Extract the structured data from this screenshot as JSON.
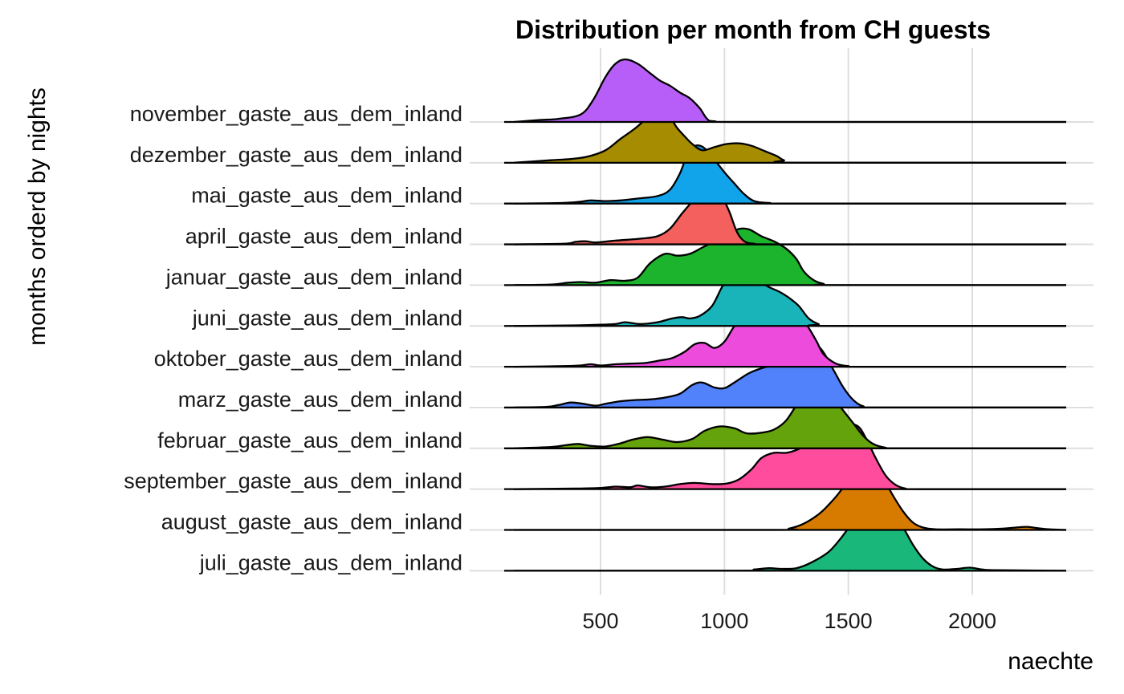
{
  "chart_data": {
    "type": "ridgeline",
    "title": "Distribution per month from CH guests",
    "xlabel": "naechte",
    "ylabel": "months orderd by nights",
    "xlim": [
      150,
      2380
    ],
    "x_ticks": [
      500,
      1000,
      1500,
      2000
    ],
    "x_tick_labels": [
      "500",
      "1000",
      "1500",
      "2000"
    ],
    "grid": true,
    "series": [
      {
        "name": "november_gaste_aus_dem_inland",
        "color": "#B75EF8",
        "density": [
          [
            150,
            0
          ],
          [
            250,
            0.03
          ],
          [
            330,
            0.05
          ],
          [
            420,
            0.12
          ],
          [
            470,
            0.35
          ],
          [
            520,
            0.72
          ],
          [
            560,
            0.93
          ],
          [
            600,
            1.0
          ],
          [
            650,
            0.93
          ],
          [
            700,
            0.78
          ],
          [
            740,
            0.66
          ],
          [
            780,
            0.58
          ],
          [
            820,
            0.47
          ],
          [
            860,
            0.38
          ],
          [
            900,
            0.22
          ],
          [
            930,
            0.05
          ],
          [
            960,
            0.01
          ],
          [
            1100,
            0
          ],
          [
            2380,
            0
          ]
        ]
      },
      {
        "name": "dezember_gaste_aus_dem_inland",
        "color": "#A58C00",
        "density": [
          [
            150,
            0
          ],
          [
            300,
            0.04
          ],
          [
            380,
            0.06
          ],
          [
            450,
            0.1
          ],
          [
            520,
            0.2
          ],
          [
            580,
            0.38
          ],
          [
            640,
            0.55
          ],
          [
            700,
            0.75
          ],
          [
            740,
            0.8
          ],
          [
            780,
            0.72
          ],
          [
            810,
            0.55
          ],
          [
            840,
            0.42
          ],
          [
            870,
            0.3
          ],
          [
            910,
            0.2
          ],
          [
            960,
            0.25
          ],
          [
            1010,
            0.3
          ],
          [
            1060,
            0.31
          ],
          [
            1110,
            0.27
          ],
          [
            1160,
            0.19
          ],
          [
            1210,
            0.11
          ],
          [
            1240,
            0.04
          ],
          [
            1300,
            0
          ],
          [
            2380,
            0
          ]
        ]
      },
      {
        "name": "mai_gaste_aus_dem_inland",
        "color": "#12A4EB",
        "density": [
          [
            150,
            0
          ],
          [
            350,
            0.01
          ],
          [
            420,
            0.03
          ],
          [
            460,
            0.05
          ],
          [
            520,
            0.04
          ],
          [
            580,
            0.05
          ],
          [
            650,
            0.08
          ],
          [
            730,
            0.12
          ],
          [
            780,
            0.22
          ],
          [
            820,
            0.48
          ],
          [
            850,
            0.78
          ],
          [
            880,
            0.92
          ],
          [
            910,
            0.91
          ],
          [
            940,
            0.8
          ],
          [
            970,
            0.65
          ],
          [
            1000,
            0.5
          ],
          [
            1040,
            0.32
          ],
          [
            1080,
            0.15
          ],
          [
            1120,
            0.04
          ],
          [
            1180,
            0.01
          ],
          [
            1300,
            0
          ],
          [
            2380,
            0
          ]
        ]
      },
      {
        "name": "april_gaste_aus_dem_inland",
        "color": "#F3605D",
        "density": [
          [
            150,
            0
          ],
          [
            350,
            0.01
          ],
          [
            400,
            0.04
          ],
          [
            440,
            0.05
          ],
          [
            480,
            0.03
          ],
          [
            560,
            0.06
          ],
          [
            660,
            0.09
          ],
          [
            730,
            0.13
          ],
          [
            780,
            0.25
          ],
          [
            830,
            0.5
          ],
          [
            880,
            0.72
          ],
          [
            920,
            0.82
          ],
          [
            960,
            0.84
          ],
          [
            990,
            0.76
          ],
          [
            1020,
            0.52
          ],
          [
            1050,
            0.2
          ],
          [
            1080,
            0.05
          ],
          [
            1120,
            0.01
          ],
          [
            1200,
            0
          ],
          [
            2380,
            0
          ]
        ]
      },
      {
        "name": "januar_gaste_aus_dem_inland",
        "color": "#1CB42D",
        "density": [
          [
            150,
            0
          ],
          [
            300,
            0.01
          ],
          [
            370,
            0.04
          ],
          [
            420,
            0.05
          ],
          [
            480,
            0.04
          ],
          [
            540,
            0.08
          ],
          [
            600,
            0.07
          ],
          [
            650,
            0.12
          ],
          [
            700,
            0.35
          ],
          [
            760,
            0.5
          ],
          [
            810,
            0.47
          ],
          [
            860,
            0.5
          ],
          [
            910,
            0.6
          ],
          [
            960,
            0.7
          ],
          [
            1010,
            0.82
          ],
          [
            1060,
            0.9
          ],
          [
            1100,
            0.89
          ],
          [
            1150,
            0.78
          ],
          [
            1200,
            0.7
          ],
          [
            1250,
            0.58
          ],
          [
            1290,
            0.42
          ],
          [
            1320,
            0.22
          ],
          [
            1360,
            0.08
          ],
          [
            1400,
            0.02
          ],
          [
            1450,
            0
          ],
          [
            2380,
            0
          ]
        ]
      },
      {
        "name": "juni_gaste_aus_dem_inland",
        "color": "#19B4BA",
        "density": [
          [
            150,
            0
          ],
          [
            400,
            0.01
          ],
          [
            500,
            0.02
          ],
          [
            560,
            0.03
          ],
          [
            600,
            0.06
          ],
          [
            660,
            0.03
          ],
          [
            730,
            0.06
          ],
          [
            790,
            0.12
          ],
          [
            830,
            0.14
          ],
          [
            860,
            0.12
          ],
          [
            900,
            0.16
          ],
          [
            950,
            0.32
          ],
          [
            990,
            0.62
          ],
          [
            1030,
            0.86
          ],
          [
            1060,
            0.92
          ],
          [
            1100,
            0.87
          ],
          [
            1140,
            0.72
          ],
          [
            1180,
            0.62
          ],
          [
            1220,
            0.55
          ],
          [
            1260,
            0.45
          ],
          [
            1300,
            0.32
          ],
          [
            1340,
            0.12
          ],
          [
            1380,
            0.03
          ],
          [
            1420,
            0
          ],
          [
            2380,
            0
          ]
        ]
      },
      {
        "name": "oktober_gaste_aus_dem_inland",
        "color": "#EC4BDC",
        "density": [
          [
            150,
            0
          ],
          [
            350,
            0.01
          ],
          [
            420,
            0.02
          ],
          [
            460,
            0.04
          ],
          [
            500,
            0.02
          ],
          [
            560,
            0.04
          ],
          [
            620,
            0.05
          ],
          [
            680,
            0.06
          ],
          [
            740,
            0.1
          ],
          [
            790,
            0.14
          ],
          [
            840,
            0.24
          ],
          [
            880,
            0.36
          ],
          [
            920,
            0.38
          ],
          [
            960,
            0.3
          ],
          [
            1000,
            0.4
          ],
          [
            1040,
            0.65
          ],
          [
            1090,
            0.86
          ],
          [
            1140,
            0.93
          ],
          [
            1200,
            0.9
          ],
          [
            1250,
            0.9
          ],
          [
            1290,
            0.85
          ],
          [
            1330,
            0.68
          ],
          [
            1370,
            0.42
          ],
          [
            1400,
            0.2
          ],
          [
            1450,
            0.05
          ],
          [
            1500,
            0.01
          ],
          [
            1560,
            0
          ],
          [
            2380,
            0
          ]
        ]
      },
      {
        "name": "marz_gaste_aus_dem_inland",
        "color": "#5182FC",
        "density": [
          [
            150,
            0
          ],
          [
            280,
            0.01
          ],
          [
            330,
            0.04
          ],
          [
            380,
            0.08
          ],
          [
            430,
            0.06
          ],
          [
            480,
            0.03
          ],
          [
            520,
            0.06
          ],
          [
            580,
            0.1
          ],
          [
            640,
            0.12
          ],
          [
            700,
            0.13
          ],
          [
            760,
            0.16
          ],
          [
            820,
            0.22
          ],
          [
            870,
            0.36
          ],
          [
            910,
            0.4
          ],
          [
            960,
            0.32
          ],
          [
            1000,
            0.31
          ],
          [
            1040,
            0.4
          ],
          [
            1100,
            0.55
          ],
          [
            1160,
            0.64
          ],
          [
            1210,
            0.68
          ],
          [
            1250,
            0.72
          ],
          [
            1290,
            0.9
          ],
          [
            1330,
            1.02
          ],
          [
            1370,
            1.0
          ],
          [
            1400,
            0.88
          ],
          [
            1440,
            0.6
          ],
          [
            1480,
            0.32
          ],
          [
            1520,
            0.12
          ],
          [
            1560,
            0.02
          ],
          [
            1620,
            0
          ],
          [
            2380,
            0
          ]
        ]
      },
      {
        "name": "februar_gaste_aus_dem_inland",
        "color": "#64A30B",
        "density": [
          [
            150,
            0
          ],
          [
            300,
            0.02
          ],
          [
            360,
            0.05
          ],
          [
            410,
            0.07
          ],
          [
            460,
            0.04
          ],
          [
            520,
            0.03
          ],
          [
            580,
            0.08
          ],
          [
            630,
            0.14
          ],
          [
            690,
            0.18
          ],
          [
            750,
            0.14
          ],
          [
            810,
            0.1
          ],
          [
            870,
            0.15
          ],
          [
            920,
            0.28
          ],
          [
            980,
            0.35
          ],
          [
            1040,
            0.32
          ],
          [
            1090,
            0.24
          ],
          [
            1150,
            0.25
          ],
          [
            1200,
            0.3
          ],
          [
            1250,
            0.45
          ],
          [
            1300,
            0.75
          ],
          [
            1340,
            0.95
          ],
          [
            1370,
            1.0
          ],
          [
            1400,
            0.96
          ],
          [
            1440,
            0.8
          ],
          [
            1480,
            0.6
          ],
          [
            1520,
            0.4
          ],
          [
            1560,
            0.2
          ],
          [
            1600,
            0.07
          ],
          [
            1650,
            0.01
          ],
          [
            1700,
            0
          ],
          [
            2380,
            0
          ]
        ]
      },
      {
        "name": "september_gaste_aus_dem_inland",
        "color": "#FF4C9C",
        "density": [
          [
            150,
            0
          ],
          [
            400,
            0.01
          ],
          [
            500,
            0.02
          ],
          [
            560,
            0.04
          ],
          [
            620,
            0.03
          ],
          [
            650,
            0.06
          ],
          [
            700,
            0.03
          ],
          [
            760,
            0.04
          ],
          [
            820,
            0.08
          ],
          [
            880,
            0.1
          ],
          [
            950,
            0.08
          ],
          [
            1010,
            0.09
          ],
          [
            1060,
            0.16
          ],
          [
            1110,
            0.32
          ],
          [
            1150,
            0.5
          ],
          [
            1200,
            0.58
          ],
          [
            1250,
            0.58
          ],
          [
            1300,
            0.64
          ],
          [
            1350,
            0.75
          ],
          [
            1400,
            0.85
          ],
          [
            1450,
            0.96
          ],
          [
            1500,
            1.04
          ],
          [
            1540,
            1.0
          ],
          [
            1570,
            0.82
          ],
          [
            1610,
            0.5
          ],
          [
            1650,
            0.22
          ],
          [
            1690,
            0.07
          ],
          [
            1730,
            0.01
          ],
          [
            1780,
            0
          ],
          [
            2380,
            0
          ]
        ]
      },
      {
        "name": "august_gaste_aus_dem_inland",
        "color": "#D67A00",
        "density": [
          [
            150,
            0
          ],
          [
            1200,
            0
          ],
          [
            1260,
            0.02
          ],
          [
            1320,
            0.1
          ],
          [
            1380,
            0.25
          ],
          [
            1420,
            0.4
          ],
          [
            1460,
            0.58
          ],
          [
            1500,
            0.8
          ],
          [
            1540,
            1.05
          ],
          [
            1570,
            1.1
          ],
          [
            1600,
            1.02
          ],
          [
            1640,
            0.82
          ],
          [
            1680,
            0.55
          ],
          [
            1720,
            0.3
          ],
          [
            1760,
            0.12
          ],
          [
            1800,
            0.04
          ],
          [
            1850,
            0.01
          ],
          [
            1950,
            0.01
          ],
          [
            2050,
            0.01
          ],
          [
            2120,
            0.02
          ],
          [
            2180,
            0.04
          ],
          [
            2220,
            0.05
          ],
          [
            2260,
            0.03
          ],
          [
            2310,
            0.01
          ],
          [
            2380,
            0
          ]
        ]
      },
      {
        "name": "juli_gaste_aus_dem_inland",
        "color": "#19B77A",
        "density": [
          [
            150,
            0
          ],
          [
            1050,
            0
          ],
          [
            1120,
            0.02
          ],
          [
            1180,
            0.04
          ],
          [
            1230,
            0.03
          ],
          [
            1290,
            0.04
          ],
          [
            1350,
            0.13
          ],
          [
            1420,
            0.3
          ],
          [
            1470,
            0.52
          ],
          [
            1520,
            0.78
          ],
          [
            1570,
            0.95
          ],
          [
            1610,
            1.05
          ],
          [
            1640,
            1.04
          ],
          [
            1680,
            0.93
          ],
          [
            1720,
            0.7
          ],
          [
            1760,
            0.42
          ],
          [
            1800,
            0.2
          ],
          [
            1840,
            0.07
          ],
          [
            1880,
            0.02
          ],
          [
            1940,
            0.03
          ],
          [
            1990,
            0.05
          ],
          [
            2040,
            0.02
          ],
          [
            2100,
            0.01
          ],
          [
            2380,
            0
          ]
        ]
      }
    ]
  }
}
